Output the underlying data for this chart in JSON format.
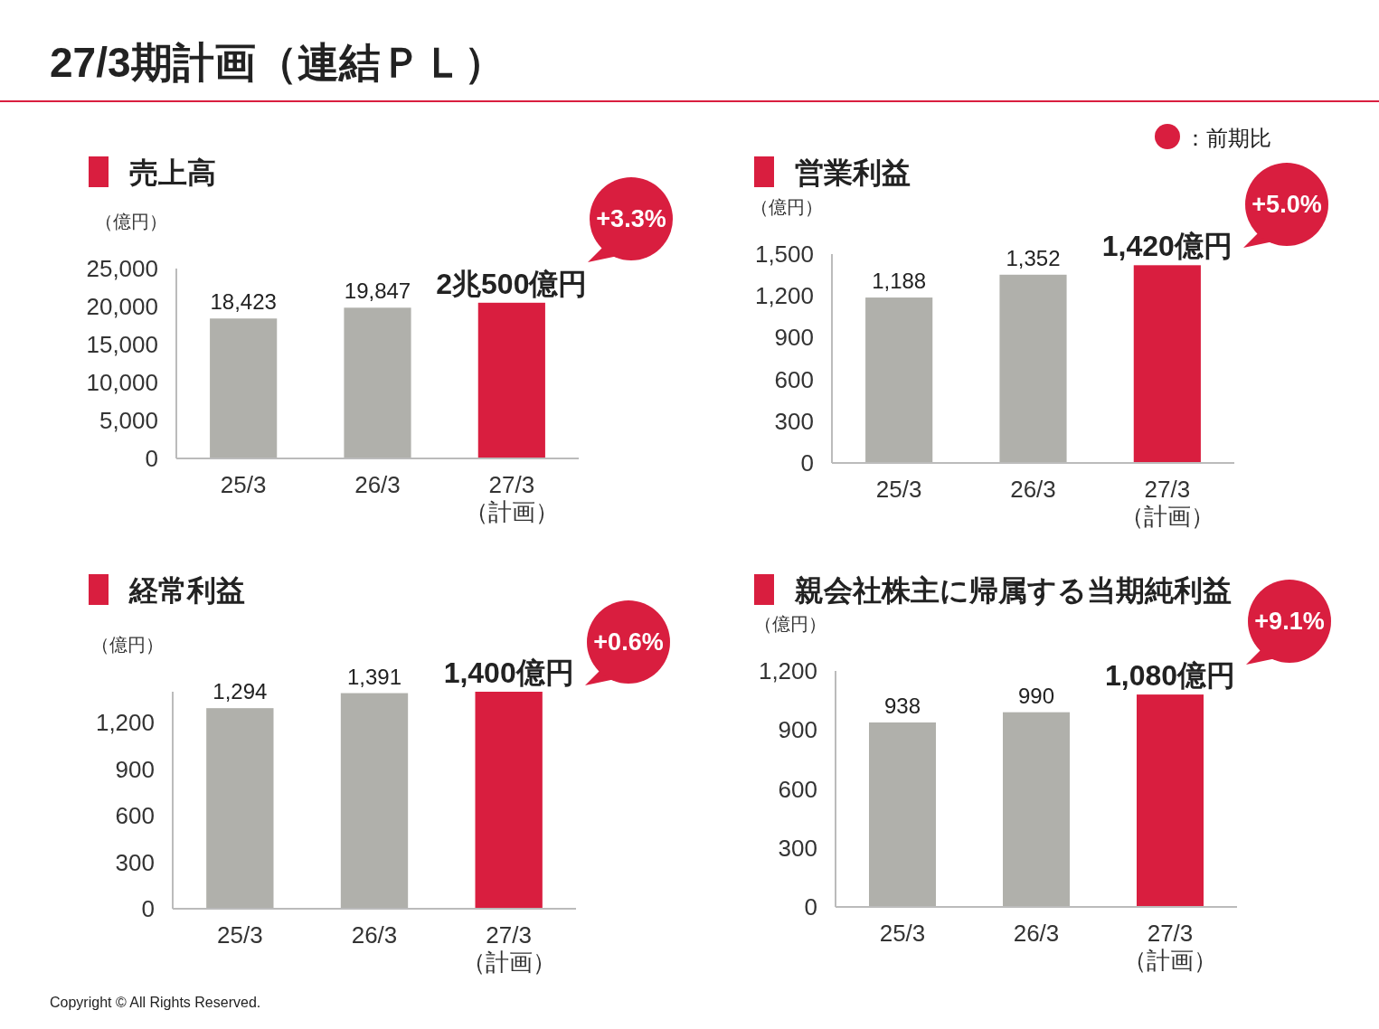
{
  "chart_data": [
    {
      "type": "bar",
      "title": "売上高",
      "ylabel": "（億円）",
      "categories": [
        "25/3",
        "26/3",
        "27/3\n（計画）"
      ],
      "values": [
        18423,
        19847,
        20500
      ],
      "colors": [
        "#b0b0ab",
        "#b0b0ab",
        "#d91e3f"
      ],
      "value_labels": [
        "18,423",
        "19,847",
        null
      ],
      "ylim": [
        0,
        25000
      ],
      "yticks": [
        {
          "value": 0,
          "label": "0"
        },
        {
          "value": 5000,
          "label": "5,000"
        },
        {
          "value": 10000,
          "label": "10,000"
        },
        {
          "value": 15000,
          "label": "15,000"
        },
        {
          "value": 20000,
          "label": "20,000"
        },
        {
          "value": 25000,
          "label": "25,000"
        }
      ],
      "annotations": [
        "+3.3%",
        {
          "text": "2兆500億円",
          "x": "27/3\n（計画）",
          "y": 20500
        }
      ]
    },
    {
      "type": "bar",
      "title": "営業利益",
      "ylabel": "（億円）",
      "categories": [
        "25/3",
        "26/3",
        "27/3\n（計画）"
      ],
      "values": [
        1188,
        1352,
        1420
      ],
      "colors": [
        "#b0b0ab",
        "#b0b0ab",
        "#d91e3f"
      ],
      "value_labels": [
        "1,188",
        "1,352",
        "1,420億円"
      ],
      "ylim": [
        0,
        1500
      ],
      "yticks": [
        {
          "value": 0,
          "label": "0"
        },
        {
          "value": 300,
          "label": "300"
        },
        {
          "value": 600,
          "label": "600"
        },
        {
          "value": 900,
          "label": "900"
        },
        {
          "value": 1200,
          "label": "1,200"
        },
        {
          "value": 1500,
          "label": "1,500"
        }
      ],
      "annotations": [
        "+5.0%"
      ]
    },
    {
      "type": "bar",
      "title": "経常利益",
      "ylabel": "（億円）",
      "categories": [
        "25/3",
        "26/3",
        "27/3\n（計画）"
      ],
      "values": [
        1294,
        1391,
        1400
      ],
      "colors": [
        "#b0b0ab",
        "#b0b0ab",
        "#d91e3f"
      ],
      "value_labels": [
        "1,294",
        "1,391",
        "1,400億円"
      ],
      "ylim": [
        0,
        1400
      ],
      "yticks": [
        {
          "value": 0,
          "label": "0"
        },
        {
          "value": 300,
          "label": "300"
        },
        {
          "value": 600,
          "label": "600"
        },
        {
          "value": 900,
          "label": "900"
        },
        {
          "value": 1200,
          "label": "1,200"
        }
      ],
      "annotations": [
        "+0.6%"
      ]
    },
    {
      "type": "bar",
      "title": "親会社株主に帰属する当期純利益",
      "ylabel": "（億円）",
      "categories": [
        "25/3",
        "26/3",
        "27/3\n（計画）"
      ],
      "values": [
        938,
        990,
        1080
      ],
      "colors": [
        "#b0b0ab",
        "#b0b0ab",
        "#d91e3f"
      ],
      "value_labels": [
        "938",
        "990",
        "1,080億円"
      ],
      "ylim": [
        0,
        1200
      ],
      "yticks": [
        {
          "value": 0,
          "label": "0"
        },
        {
          "value": 300,
          "label": "300"
        },
        {
          "value": 600,
          "label": "600"
        },
        {
          "value": 900,
          "label": "900"
        },
        {
          "value": 1200,
          "label": "1,200"
        }
      ],
      "annotations": [
        "+9.1%"
      ]
    },
    {
      "type": "other",
      "title": "27/3期計画（連結ＰＬ）",
      "annotations": [
        "：前期比",
        "Copyright © All Rights Reserved."
      ]
    }
  ]
}
